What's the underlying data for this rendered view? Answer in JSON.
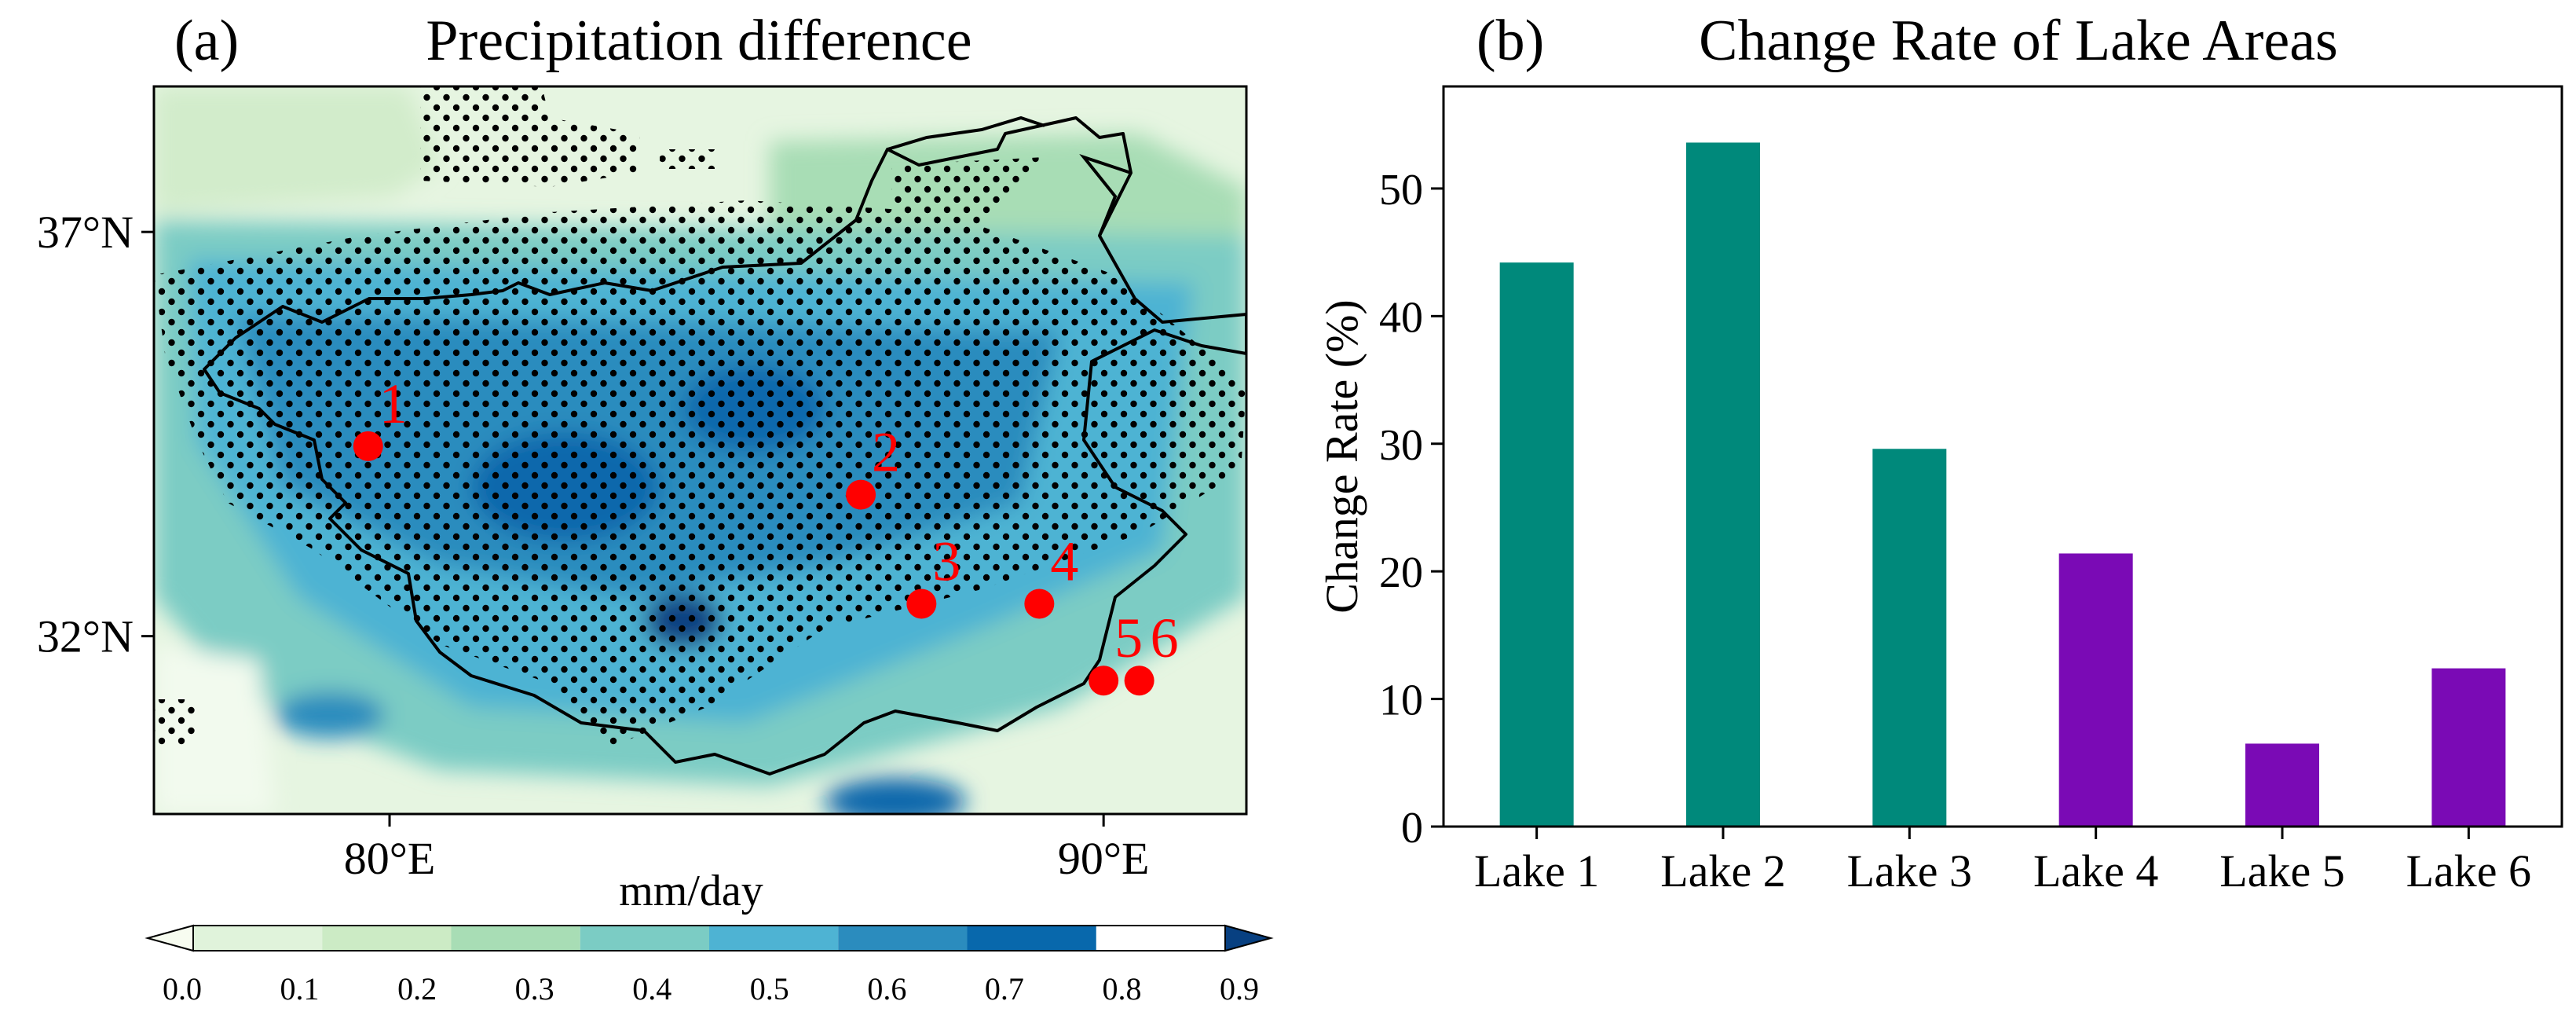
{
  "panel_a": {
    "tag": "(a)",
    "title": "Precipitation difference",
    "x_ticks": [
      {
        "value": 80,
        "label": "80°E"
      },
      {
        "value": 90,
        "label": "90°E"
      }
    ],
    "y_ticks": [
      {
        "value": 37,
        "label": "37°N"
      },
      {
        "value": 32,
        "label": "32°N"
      }
    ],
    "extent": {
      "lon": [
        76.7,
        92.0
      ],
      "lat": [
        29.8,
        38.8
      ]
    },
    "lake_markers": [
      {
        "id": "1",
        "lon": 79.7,
        "lat": 34.35
      },
      {
        "id": "2",
        "lon": 86.6,
        "lat": 33.75
      },
      {
        "id": "3",
        "lon": 87.45,
        "lat": 32.4
      },
      {
        "id": "4",
        "lon": 89.1,
        "lat": 32.4
      },
      {
        "id": "5",
        "lon": 90.0,
        "lat": 31.45
      },
      {
        "id": "6",
        "lon": 90.5,
        "lat": 31.45
      }
    ],
    "colorbar": {
      "unit": "mm/day",
      "ticks": [
        "0.0",
        "0.1",
        "0.2",
        "0.3",
        "0.4",
        "0.5",
        "0.6",
        "0.7",
        "0.8",
        "0.9"
      ],
      "colors": [
        "#f7fcf0",
        "#e0f3db",
        "#ccebc5",
        "#a8ddb5",
        "#7bccc4",
        "#4eb3d3",
        "#2b8cbe",
        "#0868ac",
        "#084081"
      ]
    }
  },
  "chart_data": {
    "type": "bar",
    "tag": "(b)",
    "title": "Change Rate of Lake Areas",
    "categories": [
      "Lake 1",
      "Lake 2",
      "Lake 3",
      "Lake 4",
      "Lake 5",
      "Lake 6"
    ],
    "values": [
      44.2,
      53.6,
      29.6,
      21.4,
      6.5,
      12.4
    ],
    "colors": [
      "#00897b",
      "#00897b",
      "#00897b",
      "#7a0ab5",
      "#7a0ab5",
      "#7a0ab5"
    ],
    "xlabel": "",
    "ylabel": "Change Rate (%)",
    "ylim": [
      0,
      58
    ],
    "yticks": [
      0,
      10,
      20,
      30,
      40,
      50
    ]
  }
}
